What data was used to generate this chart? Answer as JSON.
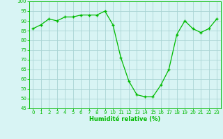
{
  "x": [
    0,
    1,
    2,
    3,
    4,
    5,
    6,
    7,
    8,
    9,
    10,
    11,
    12,
    13,
    14,
    15,
    16,
    17,
    18,
    19,
    20,
    21,
    22,
    23
  ],
  "y": [
    86,
    88,
    91,
    90,
    92,
    92,
    93,
    93,
    93,
    95,
    88,
    71,
    59,
    52,
    51,
    51,
    57,
    65,
    83,
    90,
    86,
    84,
    86,
    91
  ],
  "line_color": "#00bb00",
  "marker_color": "#00bb00",
  "bg_color": "#d8f4f4",
  "grid_color": "#aad4d4",
  "xlabel": "Humidité relative (%)",
  "xlabel_color": "#00bb00",
  "ylim": [
    45,
    100
  ],
  "yticks": [
    45,
    50,
    55,
    60,
    65,
    70,
    75,
    80,
    85,
    90,
    95,
    100
  ],
  "xticks": [
    0,
    1,
    2,
    3,
    4,
    5,
    6,
    7,
    8,
    9,
    10,
    11,
    12,
    13,
    14,
    15,
    16,
    17,
    18,
    19,
    20,
    21,
    22,
    23
  ],
  "tick_color": "#00bb00",
  "spine_color": "#00bb00"
}
